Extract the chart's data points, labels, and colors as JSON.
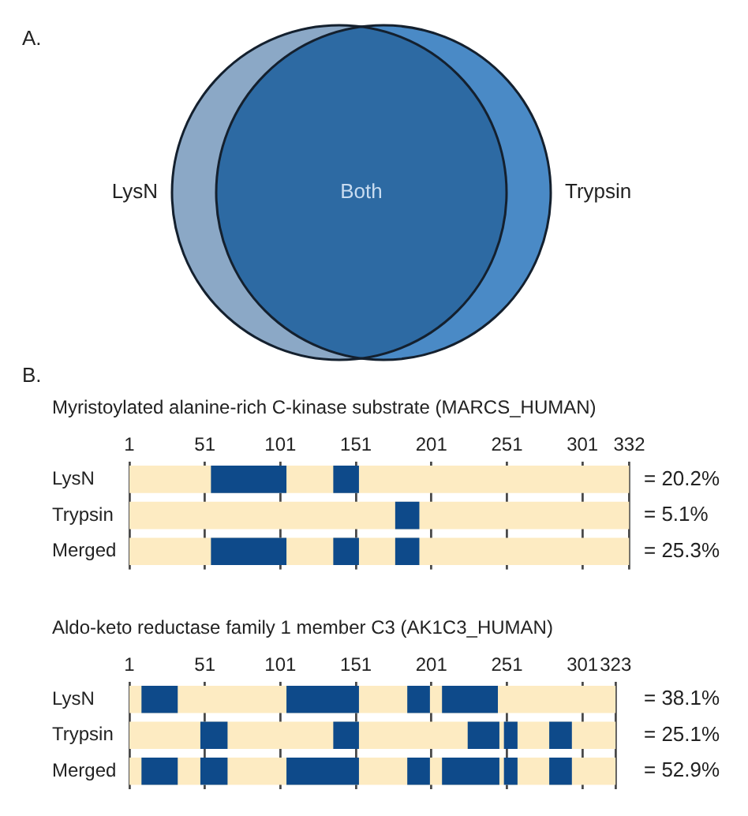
{
  "chart_data": [
    {
      "type": "other",
      "categories": [
        "LysN",
        "Both",
        "Trypsin"
      ],
      "colors": [
        "#8ba8c6",
        "#2d6aa3",
        "#4a8ac6"
      ],
      "annotations": [
        "A."
      ]
    },
    {
      "type": "bar",
      "orientation": "horizontal",
      "title": "Myristoylated alanine-rich C-kinase substrate (MARCS_HUMAN)",
      "annotations": [
        "B.",
        "= 20.2%",
        "= 5.1%",
        "= 25.3%"
      ],
      "categories": [
        "LysN",
        "Trypsin",
        "Merged"
      ],
      "xlim": [
        1,
        332
      ],
      "xticks": [
        1,
        51,
        101,
        151,
        201,
        251,
        301,
        332
      ],
      "grid": "x",
      "series": [
        {
          "color": "#fdebc2",
          "base": [
            1,
            1,
            1
          ],
          "values": [
            331,
            331,
            331
          ]
        },
        {
          "color": "#0e4a8a",
          "base": [
            55,
            177,
            55
          ],
          "values": [
            50,
            16,
            50
          ]
        },
        {
          "color": "#0e4a8a",
          "base": [
            136,
            null,
            136
          ],
          "values": [
            17,
            null,
            17
          ]
        },
        {
          "color": "#0e4a8a",
          "base": [
            null,
            null,
            177
          ],
          "values": [
            null,
            null,
            16
          ]
        }
      ]
    },
    {
      "type": "bar",
      "orientation": "horizontal",
      "title": "Aldo-keto reductase family 1 member C3 (AK1C3_HUMAN)",
      "annotations": [
        "= 38.1%",
        "= 25.1%",
        "= 52.9%"
      ],
      "categories": [
        "LysN",
        "Trypsin",
        "Merged"
      ],
      "xlim": [
        1,
        323
      ],
      "xticks": [
        1,
        51,
        101,
        151,
        201,
        251,
        301,
        323
      ],
      "grid": "x",
      "series": [
        {
          "color": "#fdebc2",
          "base": [
            1,
            1,
            1
          ],
          "values": [
            322,
            322,
            322
          ]
        },
        {
          "color": "#0e4a8a",
          "base": [
            9,
            48,
            9
          ],
          "values": [
            24,
            18,
            24
          ]
        },
        {
          "color": "#0e4a8a",
          "base": [
            105,
            136,
            48
          ],
          "values": [
            48,
            17,
            18
          ]
        },
        {
          "color": "#0e4a8a",
          "base": [
            185,
            225,
            105
          ],
          "values": [
            15,
            21,
            48
          ]
        },
        {
          "color": "#0e4a8a",
          "base": [
            208,
            249,
            185
          ],
          "values": [
            37,
            9,
            15
          ]
        },
        {
          "color": "#0e4a8a",
          "base": [
            null,
            279,
            208
          ],
          "values": [
            null,
            15,
            38
          ]
        },
        {
          "color": "#0e4a8a",
          "base": [
            null,
            null,
            249
          ],
          "values": [
            null,
            null,
            9
          ]
        },
        {
          "color": "#0e4a8a",
          "base": [
            null,
            null,
            279
          ],
          "values": [
            null,
            null,
            15
          ]
        }
      ]
    }
  ]
}
